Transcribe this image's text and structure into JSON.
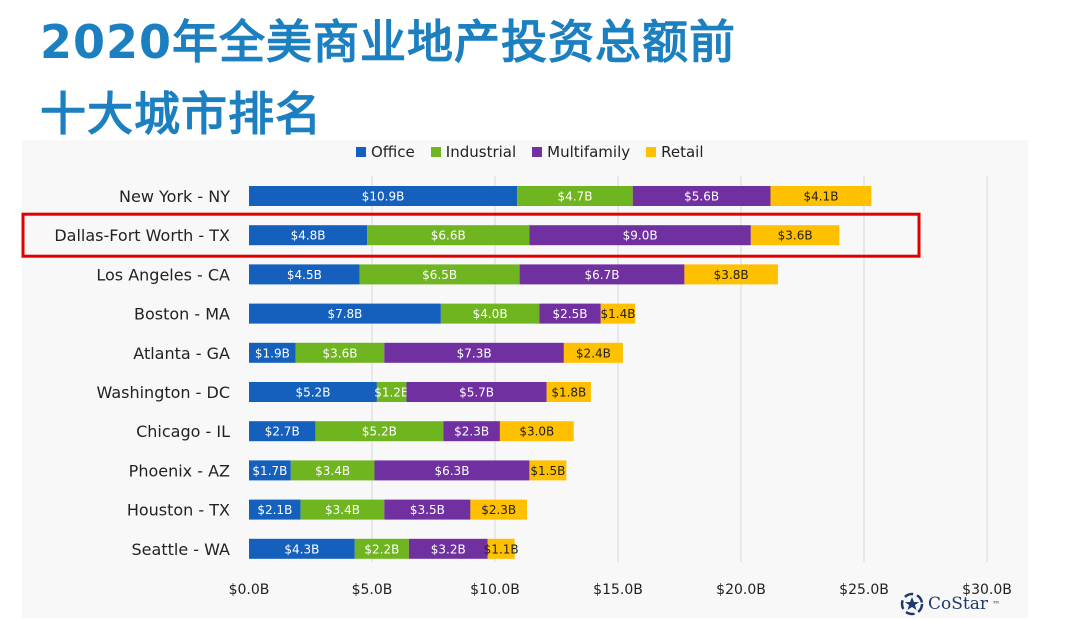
{
  "title": {
    "line1": "2020年全美商业地产投资总额前",
    "line2": "十大城市排名"
  },
  "logo": {
    "text": "CoStar",
    "mark": "™"
  },
  "colors": {
    "Office": "#1560bd",
    "Industrial": "#6fb51f",
    "Multifamily": "#7030a0",
    "Retail": "#ffc000",
    "title": "#1b7fc0",
    "highlight": "#e00000",
    "gridline": "#d9d9d9"
  },
  "highlight_category": "Dallas-Fort Worth - TX",
  "chart_data": {
    "type": "bar",
    "orientation": "horizontal",
    "stacked": true,
    "legend_position": "top",
    "grid": true,
    "categories": [
      "New York - NY",
      "Dallas-Fort Worth - TX",
      "Los Angeles - CA",
      "Boston - MA",
      "Atlanta - GA",
      "Washington - DC",
      "Chicago - IL",
      "Phoenix - AZ",
      "Houston - TX",
      "Seattle - WA"
    ],
    "series": [
      {
        "name": "Office",
        "values": [
          10.9,
          4.8,
          4.5,
          7.8,
          1.9,
          5.2,
          2.7,
          1.7,
          2.1,
          4.3
        ]
      },
      {
        "name": "Industrial",
        "values": [
          4.7,
          6.6,
          6.5,
          4.0,
          3.6,
          1.2,
          5.2,
          3.4,
          3.4,
          2.2
        ]
      },
      {
        "name": "Multifamily",
        "values": [
          5.6,
          9.0,
          6.7,
          2.5,
          7.3,
          5.7,
          2.3,
          6.3,
          3.5,
          3.2
        ]
      },
      {
        "name": "Retail",
        "values": [
          4.1,
          3.6,
          3.8,
          1.4,
          2.4,
          1.8,
          3.0,
          1.5,
          2.3,
          1.1
        ]
      }
    ],
    "data_labels": [
      [
        "$10.9B",
        "$4.8B",
        "$4.5B",
        "$7.8B",
        "$1.9B",
        "$5.2B",
        "$2.7B",
        "$1.7B",
        "$2.1B",
        "$4.3B"
      ],
      [
        "$4.7B",
        "$6.6B",
        "$6.5B",
        "$4.0B",
        "$3.6B",
        "$1.2B",
        "$5.2B",
        "$3.4B",
        "$3.4B",
        "$2.2B"
      ],
      [
        "$5.6B",
        "$9.0B",
        "$6.7B",
        "$2.5B",
        "$7.3B",
        "$5.7B",
        "$2.3B",
        "$6.3B",
        "$3.5B",
        "$3.2B"
      ],
      [
        "$4.1B",
        "$3.6B",
        "$3.8B",
        "$1.4B",
        "$2.4B",
        "$1.8B",
        "$3.0B",
        "$1.5B",
        "$2.3B",
        "$1.1B"
      ]
    ],
    "x_ticks": [
      0,
      5,
      10,
      15,
      20,
      25,
      30
    ],
    "x_tick_labels": [
      "$0.0B",
      "$5.0B",
      "$10.0B",
      "$15.0B",
      "$20.0B",
      "$25.0B",
      "$30.0B"
    ],
    "xlim": [
      0,
      30
    ]
  }
}
